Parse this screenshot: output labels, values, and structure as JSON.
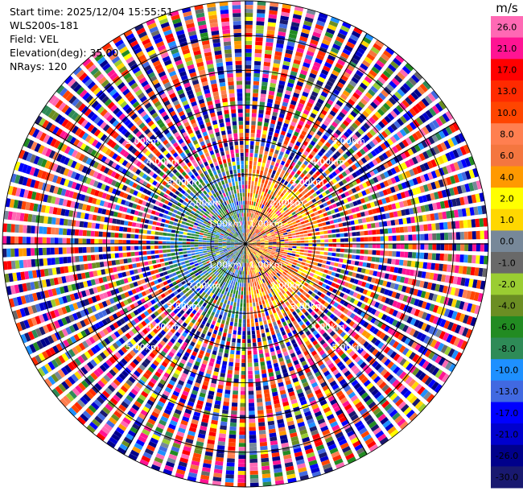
{
  "info": {
    "start_time": "Start time: 2025/12/04 15:55:51",
    "instrument": "WLS200s-181",
    "field": "Field: VEL",
    "elevation": "Elevation(deg): 35.00",
    "nrays": "NRays: 120"
  },
  "chart_data": {
    "type": "heatmap",
    "projection": "polar-ppi",
    "field": "VEL",
    "nrays": 120,
    "max_range_km": 7.0,
    "range_rings_km": [
      1,
      2,
      3,
      4,
      5,
      6,
      7
    ],
    "ring_labels": [
      "1.00km",
      "2.00km",
      "3.00km",
      "4.00km",
      "5.00km"
    ],
    "near_field": {
      "extent_km": 2.5,
      "west_color_range": [
        -13,
        -2
      ],
      "east_color_range": [
        1,
        13
      ]
    },
    "far_field": "noise",
    "colorbar": {
      "unit": "m/s",
      "ticks": [
        "26.0",
        "21.0",
        "17.0",
        "13.0",
        "10.0",
        "8.0",
        "6.0",
        "4.0",
        "2.0",
        "1.0",
        "0.0",
        "-1.0",
        "-2.0",
        "-4.0",
        "-6.0",
        "-8.0",
        "-10.0",
        "-13.0",
        "-17.0",
        "-21.0",
        "-26.0",
        "-30.0"
      ],
      "bins": [
        {
          "from": 26,
          "to": 30,
          "color": "#ff69b4"
        },
        {
          "from": 21,
          "to": 26,
          "color": "#ff1493"
        },
        {
          "from": 17,
          "to": 21,
          "color": "#ff0000"
        },
        {
          "from": 13,
          "to": 17,
          "color": "#ff2a00"
        },
        {
          "from": 10,
          "to": 13,
          "color": "#ff4500"
        },
        {
          "from": 8,
          "to": 10,
          "color": "#ff7f50"
        },
        {
          "from": 6,
          "to": 8,
          "color": "#f4763f"
        },
        {
          "from": 4,
          "to": 6,
          "color": "#ff9900"
        },
        {
          "from": 2,
          "to": 4,
          "color": "#ffff00"
        },
        {
          "from": 1,
          "to": 2,
          "color": "#ffd700"
        },
        {
          "from": 0,
          "to": 1,
          "color": "#778899"
        },
        {
          "from": -1,
          "to": 0,
          "color": "#696969"
        },
        {
          "from": -2,
          "to": -1,
          "color": "#9acd32"
        },
        {
          "from": -4,
          "to": -2,
          "color": "#6b8e23"
        },
        {
          "from": -6,
          "to": -4,
          "color": "#228b22"
        },
        {
          "from": -8,
          "to": -6,
          "color": "#2e8b57"
        },
        {
          "from": -10,
          "to": -8,
          "color": "#1e90ff"
        },
        {
          "from": -13,
          "to": -10,
          "color": "#4169e1"
        },
        {
          "from": -17,
          "to": -13,
          "color": "#0000ff"
        },
        {
          "from": -21,
          "to": -17,
          "color": "#0000cd"
        },
        {
          "from": -26,
          "to": -21,
          "color": "#00008b"
        },
        {
          "from": -30,
          "to": -26,
          "color": "#191970"
        }
      ]
    }
  }
}
